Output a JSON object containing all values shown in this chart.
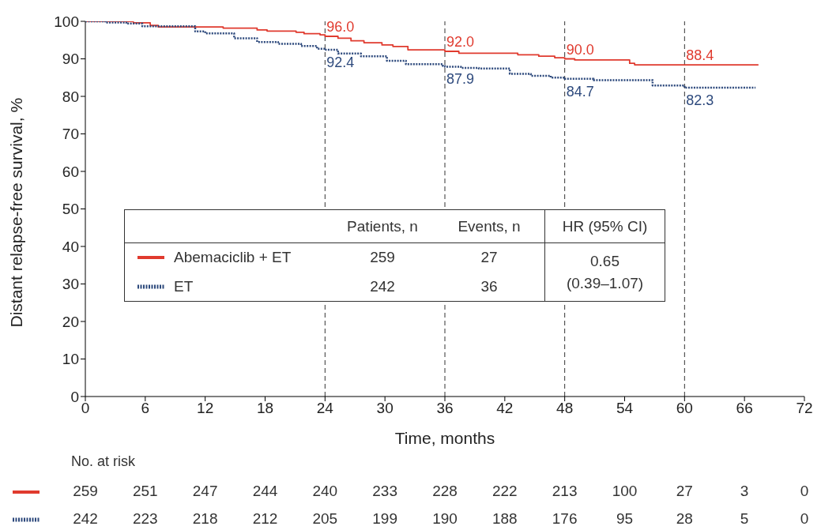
{
  "chart_data": {
    "type": "step",
    "xlabel": "Time, months",
    "ylabel": "Distant relapse-free survival, %",
    "xlim": [
      0,
      72
    ],
    "xticks": [
      0,
      6,
      12,
      18,
      24,
      30,
      36,
      42,
      48,
      54,
      60,
      66,
      72
    ],
    "ylim": [
      0,
      100
    ],
    "yticks": [
      0,
      10,
      20,
      30,
      40,
      50,
      60,
      70,
      80,
      90,
      100
    ],
    "grid": false,
    "legend": "center",
    "marker": "none",
    "series": [
      {
        "name": "Abemaciclib + ET",
        "color": "#e03a2e",
        "line_style": "solid",
        "x": [
          0,
          4.8,
          6.5,
          7.3,
          13.8,
          17.2,
          18.2,
          21.1,
          21.9,
          23.5,
          24,
          24.5,
          25.3,
          26.6,
          27.9,
          29.7,
          30.8,
          32.3,
          36,
          37.4,
          43.3,
          45.4,
          47,
          48,
          49,
          54.5,
          55,
          67.4
        ],
        "values": [
          100,
          99.6,
          98.9,
          98.5,
          98.2,
          97.7,
          97.4,
          97.1,
          96.7,
          96.4,
          96.0,
          96.0,
          95.5,
          94.8,
          94.3,
          93.7,
          93.3,
          92.4,
          92.0,
          91.5,
          91.1,
          90.7,
          90.3,
          90.0,
          89.7,
          88.8,
          88.4,
          88.4
        ]
      },
      {
        "name": "ET",
        "color": "#2e4a7d",
        "line_style": "dotted",
        "x": [
          0,
          2,
          4.1,
          5.7,
          11,
          12,
          14.9,
          17.2,
          19.3,
          21.6,
          23.2,
          24,
          25.3,
          27.6,
          30.2,
          32.1,
          35.8,
          36,
          37.6,
          39.4,
          42.5,
          44.6,
          46.6,
          48,
          50.9,
          56.8,
          60,
          67.1
        ],
        "values": [
          100,
          99.7,
          99.4,
          98.7,
          97.3,
          96.8,
          95.5,
          94.5,
          94.0,
          93.4,
          92.7,
          92.4,
          91.4,
          90.7,
          89.5,
          88.6,
          88.1,
          87.9,
          87.6,
          87.4,
          86.0,
          85.5,
          85.0,
          84.7,
          84.3,
          82.9,
          82.3,
          82.3
        ]
      }
    ],
    "ref_lines": [
      {
        "axis": "x",
        "value": 24,
        "color": "#333333",
        "line_style": "dashed"
      },
      {
        "axis": "x",
        "value": 36,
        "color": "#333333",
        "line_style": "dashed"
      },
      {
        "axis": "x",
        "value": 48,
        "color": "#333333",
        "line_style": "dashed"
      },
      {
        "axis": "x",
        "value": 60,
        "color": "#333333",
        "line_style": "dashed"
      }
    ],
    "annotations": [
      {
        "text": "96.0",
        "x": 24,
        "y": 96.0
      },
      {
        "text": "92.4",
        "x": 24,
        "y": 92.4
      },
      {
        "text": "92.0",
        "x": 36,
        "y": 92.0
      },
      {
        "text": "87.9",
        "x": 36,
        "y": 87.9
      },
      {
        "text": "90.0",
        "x": 48,
        "y": 90.0
      },
      {
        "text": "84.7",
        "x": 48,
        "y": 84.7
      },
      {
        "text": "88.4",
        "x": 60,
        "y": 88.4
      },
      {
        "text": "82.3",
        "x": 60,
        "y": 82.3
      },
      "Patients, n",
      "Events, n",
      "HR (95% CI)",
      "259",
      "27",
      "242",
      "36",
      "0.65",
      "(0.39–1.07)",
      "No. at risk",
      "259",
      "251",
      "247",
      "244",
      "240",
      "233",
      "228",
      "222",
      "213",
      "100",
      "27",
      "3",
      "0",
      "242",
      "223",
      "218",
      "212",
      "205",
      "199",
      "190",
      "188",
      "176",
      "95",
      "28",
      "5",
      "0"
    ]
  }
}
